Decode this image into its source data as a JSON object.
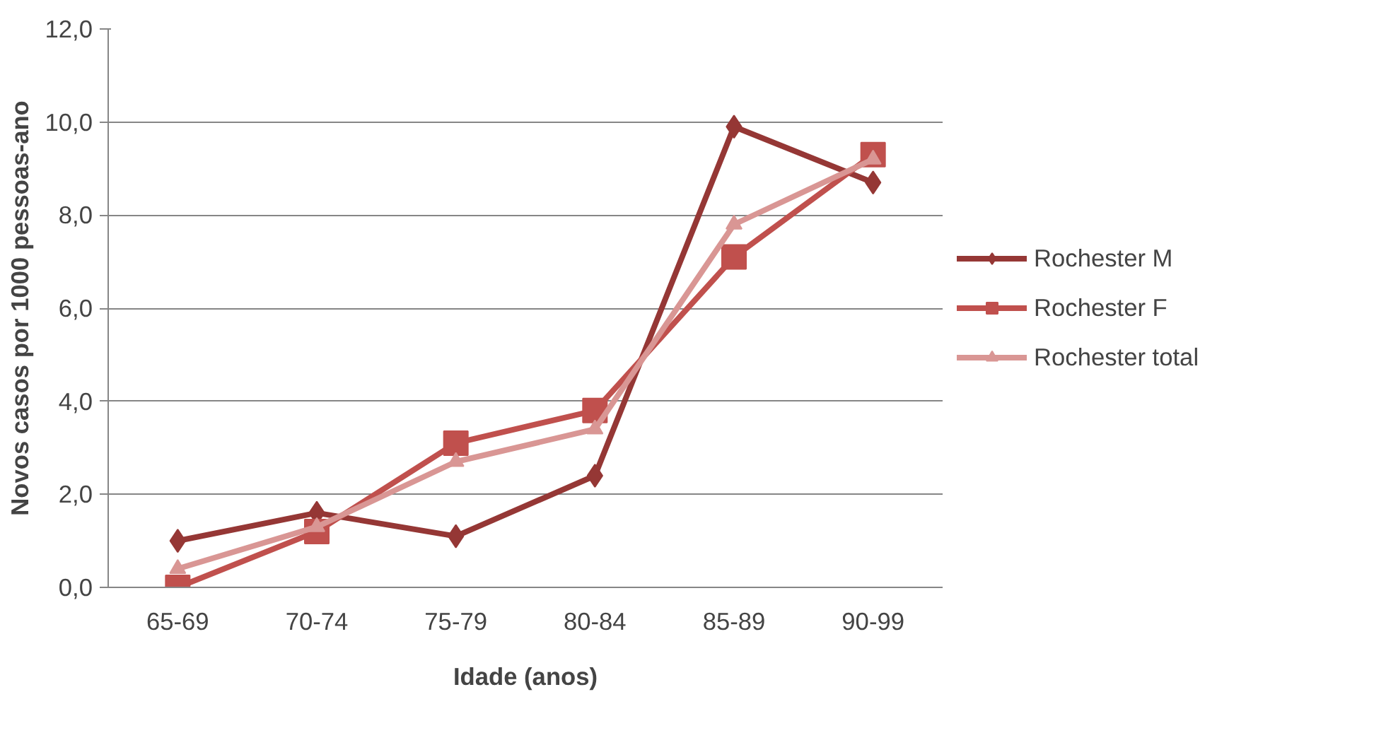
{
  "chart_data": {
    "type": "line",
    "xlabel": "Idade (anos)",
    "ylabel": "Novos casos por 1000 pessoas-ano",
    "categories": [
      "65-69",
      "70-74",
      "75-79",
      "80-84",
      "85-89",
      "90-99"
    ],
    "series": [
      {
        "name": "Rochester M",
        "color": "#953735",
        "marker": "diamond",
        "values": [
          1.0,
          1.6,
          1.1,
          2.4,
          9.9,
          8.7
        ]
      },
      {
        "name": "Rochester F",
        "color": "#c0504d",
        "marker": "square",
        "values": [
          0.0,
          1.2,
          3.1,
          3.8,
          7.1,
          9.3
        ]
      },
      {
        "name": "Rochester total",
        "color": "#d99694",
        "marker": "triangle",
        "values": [
          0.4,
          1.3,
          2.7,
          3.4,
          7.8,
          9.2
        ]
      }
    ],
    "ylim": [
      0,
      12
    ],
    "yticks": [
      {
        "value": 0,
        "label": "0,0"
      },
      {
        "value": 2,
        "label": "2,0"
      },
      {
        "value": 4,
        "label": "4,0"
      },
      {
        "value": 6,
        "label": "6,0"
      },
      {
        "value": 8,
        "label": "8,0"
      },
      {
        "value": 10,
        "label": "10,0"
      },
      {
        "value": 12,
        "label": "12,0"
      }
    ],
    "grid": "y",
    "legend": "right",
    "line_style": "solid"
  }
}
